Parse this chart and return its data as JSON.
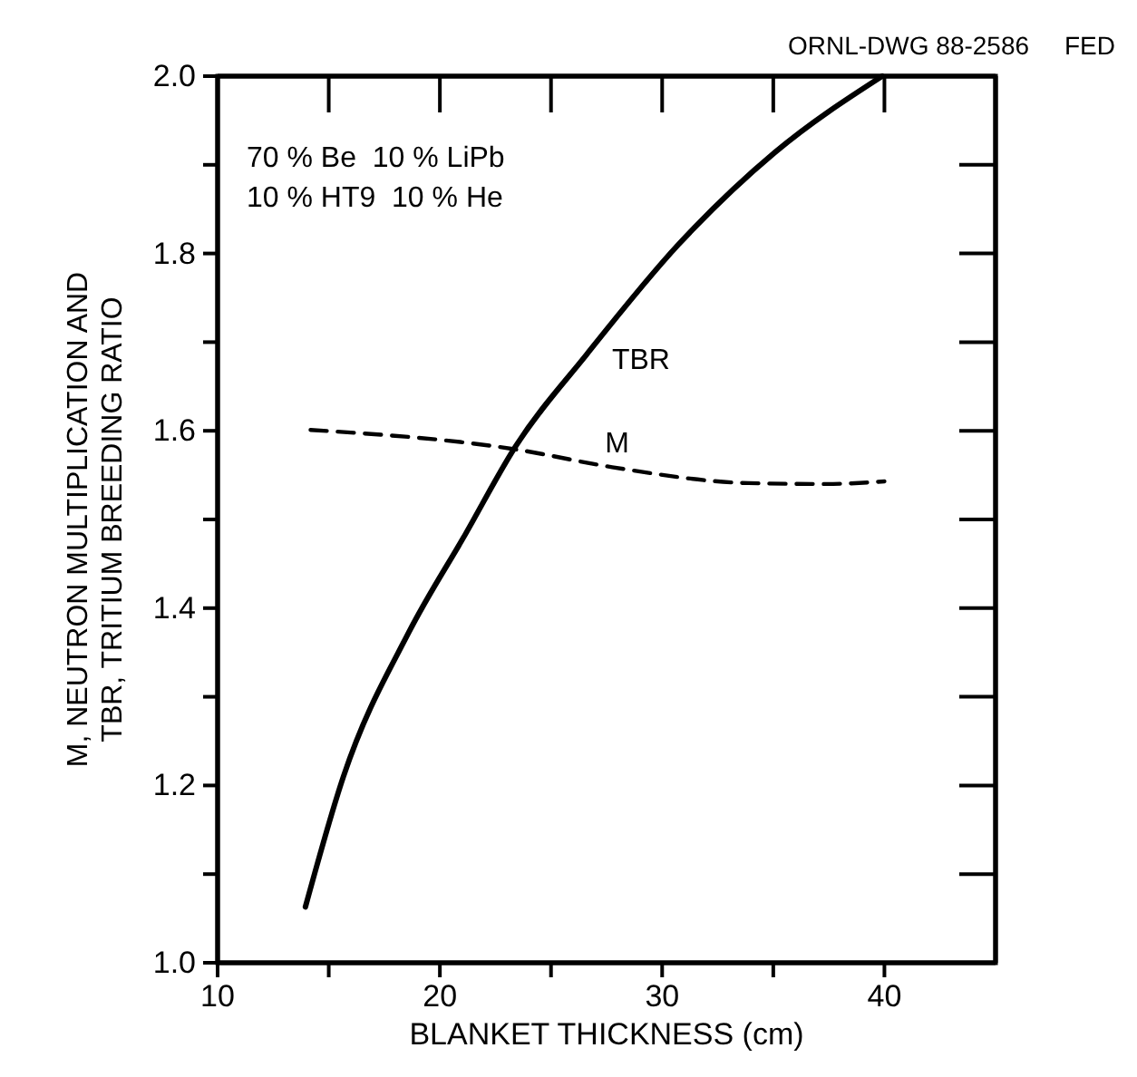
{
  "chart_data": {
    "type": "line",
    "xlabel": "BLANKET THICKNESS (cm)",
    "ylabel": "M, NEUTRON MULTIPLICATION AND\nTBR, TRITIUM BREEDING RATIO",
    "annotations": [
      "ORNL-DWG 88-2586     FED",
      "70 % Be  10 % LiPb",
      "10 % HT9  10 % He"
    ],
    "xlim": [
      10,
      45
    ],
    "xticks": [
      10,
      {
        "value": 15,
        "label": null
      },
      20,
      {
        "value": 25,
        "label": null
      },
      30,
      {
        "value": 35,
        "label": null
      },
      40
    ],
    "ylim": [
      1.0,
      2.0
    ],
    "yticks": [
      {
        "value": 1.0,
        "label": "1.0"
      },
      {
        "value": 1.1,
        "label": null
      },
      1.2,
      {
        "value": 1.3,
        "label": null
      },
      1.4,
      {
        "value": 1.5,
        "label": null
      },
      1.6,
      {
        "value": 1.7,
        "label": null
      },
      1.8,
      {
        "value": 1.9,
        "label": null
      },
      {
        "value": 2.0,
        "label": "2.0"
      }
    ],
    "grid": false,
    "legend": false,
    "marker": "none",
    "series": [
      {
        "name": "TBR",
        "color": "#000000",
        "line_style": "solid",
        "x": [
          13.95,
          15.66,
          18.63,
          21.14,
          23.42,
          26.6,
          30.73,
          35.07,
          39.9
        ],
        "values": [
          1.063,
          1.21,
          1.374,
          1.483,
          1.583,
          1.686,
          1.81,
          1.914,
          2.0
        ]
      },
      {
        "name": "M",
        "color": "#000000",
        "line_style": "dashed",
        "x": [
          14.18,
          23.42,
          27.75,
          33.9,
          37.4,
          40
        ],
        "values": [
          1.601,
          1.579,
          1.559,
          1.541,
          1.54,
          1.543
        ]
      }
    ]
  }
}
